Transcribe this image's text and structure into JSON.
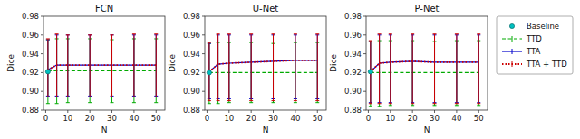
{
  "chart_data": [
    {
      "type": "line",
      "title": "FCN",
      "xlabel": "N",
      "ylabel": "Dice",
      "x": [
        1,
        5,
        10,
        20,
        30,
        40,
        50
      ],
      "xlim": [
        -1,
        54
      ],
      "xticks": [
        0,
        10,
        20,
        30,
        40,
        50
      ],
      "ylim": [
        0.88,
        0.98
      ],
      "yticks": [
        0.88,
        {
          "value": 0.9,
          "label": "0.90"
        },
        0.92,
        0.94,
        0.96,
        0.98
      ],
      "grid": false,
      "legend": false,
      "series": [
        {
          "name": "Baseline",
          "type": "scatter",
          "marker": "circle",
          "color": "#00BFBF",
          "values": [
            0.921,
            null,
            null,
            null,
            null,
            null,
            null
          ]
        },
        {
          "name": "TTD",
          "line_style": "dashed",
          "color": "#00AA00",
          "values": [
            0.922,
            0.922,
            0.922,
            0.922,
            0.922,
            0.922,
            0.922
          ],
          "lo": [
            0.887,
            0.887,
            0.888,
            0.888,
            0.888,
            0.888,
            0.888
          ],
          "hi": [
            0.955,
            0.956,
            0.956,
            0.956,
            0.955,
            0.956,
            0.956
          ]
        },
        {
          "name": "TTA",
          "line_style": "solid",
          "color": "#0000CC",
          "values": [
            0.923,
            0.928,
            0.928,
            0.928,
            0.928,
            0.928,
            0.928
          ],
          "lo": [
            0.895,
            0.895,
            0.895,
            0.895,
            0.895,
            0.895,
            0.895
          ],
          "hi": [
            0.955,
            0.96,
            0.96,
            0.96,
            0.96,
            0.96,
            0.96
          ]
        },
        {
          "name": "TTA + TTD",
          "line_style": "dotted",
          "color": "#CC0000",
          "values": [
            0.923,
            0.928,
            0.928,
            0.928,
            0.928,
            0.928,
            0.928
          ],
          "lo": [
            0.894,
            0.894,
            0.894,
            0.894,
            0.894,
            0.894,
            0.894
          ],
          "hi": [
            0.956,
            0.961,
            0.96,
            0.96,
            0.96,
            0.961,
            0.961
          ]
        }
      ]
    },
    {
      "type": "line",
      "title": "U-Net",
      "xlabel": "N",
      "ylabel": "Dice",
      "x": [
        1,
        5,
        10,
        20,
        30,
        40,
        50
      ],
      "xlim": [
        -1,
        54
      ],
      "xticks": [
        0,
        10,
        20,
        30,
        40,
        50
      ],
      "ylim": [
        0.88,
        0.98
      ],
      "yticks": [
        0.88,
        {
          "value": 0.9,
          "label": "0.90"
        },
        0.92,
        0.94,
        0.96,
        0.98
      ],
      "grid": false,
      "legend": false,
      "series": [
        {
          "name": "Baseline",
          "type": "scatter",
          "marker": "circle",
          "color": "#00BFBF",
          "values": [
            0.92,
            null,
            null,
            null,
            null,
            null,
            null
          ]
        },
        {
          "name": "TTD",
          "line_style": "dashed",
          "color": "#00AA00",
          "values": [
            0.92,
            0.92,
            0.92,
            0.92,
            0.92,
            0.92,
            0.92
          ],
          "lo": [
            0.887,
            0.887,
            0.888,
            0.888,
            0.888,
            0.888,
            0.888
          ],
          "hi": [
            0.951,
            0.952,
            0.952,
            0.952,
            0.951,
            0.952,
            0.952
          ]
        },
        {
          "name": "TTA",
          "line_style": "solid",
          "color": "#0000CC",
          "values": [
            0.921,
            0.929,
            0.93,
            0.931,
            0.932,
            0.933,
            0.933
          ],
          "lo": [
            0.892,
            0.892,
            0.892,
            0.892,
            0.892,
            0.892,
            0.892
          ],
          "hi": [
            0.951,
            0.96,
            0.96,
            0.96,
            0.96,
            0.96,
            0.96
          ]
        },
        {
          "name": "TTA + TTD",
          "line_style": "dotted",
          "color": "#CC0000",
          "values": [
            0.921,
            0.929,
            0.93,
            0.931,
            0.932,
            0.933,
            0.933
          ],
          "lo": [
            0.89,
            0.89,
            0.89,
            0.89,
            0.89,
            0.89,
            0.89
          ],
          "hi": [
            0.952,
            0.961,
            0.961,
            0.961,
            0.961,
            0.961,
            0.961
          ]
        }
      ]
    },
    {
      "type": "line",
      "title": "P-Net",
      "xlabel": "N",
      "ylabel": "Dice",
      "x": [
        1,
        5,
        10,
        20,
        30,
        40,
        50
      ],
      "xlim": [
        -1,
        54
      ],
      "xticks": [
        0,
        10,
        20,
        30,
        40,
        50
      ],
      "ylim": [
        0.88,
        0.98
      ],
      "yticks": [
        0.88,
        {
          "value": 0.9,
          "label": "0.90"
        },
        0.92,
        0.94,
        0.96,
        0.98
      ],
      "grid": false,
      "legend": "right",
      "series": [
        {
          "name": "Baseline",
          "type": "scatter",
          "marker": "circle",
          "color": "#00BFBF",
          "values": [
            0.921,
            null,
            null,
            null,
            null,
            null,
            null
          ]
        },
        {
          "name": "TTD",
          "line_style": "dashed",
          "color": "#00AA00",
          "values": [
            0.92,
            0.92,
            0.92,
            0.92,
            0.92,
            0.92,
            0.92
          ],
          "lo": [
            0.884,
            0.884,
            0.885,
            0.885,
            0.885,
            0.885,
            0.885
          ],
          "hi": [
            0.953,
            0.954,
            0.954,
            0.954,
            0.953,
            0.954,
            0.954
          ]
        },
        {
          "name": "TTA",
          "line_style": "solid",
          "color": "#0000CC",
          "values": [
            0.921,
            0.93,
            0.931,
            0.932,
            0.931,
            0.931,
            0.931
          ],
          "lo": [
            0.888,
            0.888,
            0.888,
            0.888,
            0.888,
            0.888,
            0.888
          ],
          "hi": [
            0.953,
            0.96,
            0.96,
            0.96,
            0.96,
            0.96,
            0.96
          ]
        },
        {
          "name": "TTA + TTD",
          "line_style": "dotted",
          "color": "#CC0000",
          "values": [
            0.921,
            0.93,
            0.931,
            0.932,
            0.931,
            0.931,
            0.931
          ],
          "lo": [
            0.887,
            0.887,
            0.887,
            0.887,
            0.887,
            0.887,
            0.887
          ],
          "hi": [
            0.954,
            0.961,
            0.961,
            0.961,
            0.961,
            0.961,
            0.961
          ]
        }
      ]
    }
  ]
}
